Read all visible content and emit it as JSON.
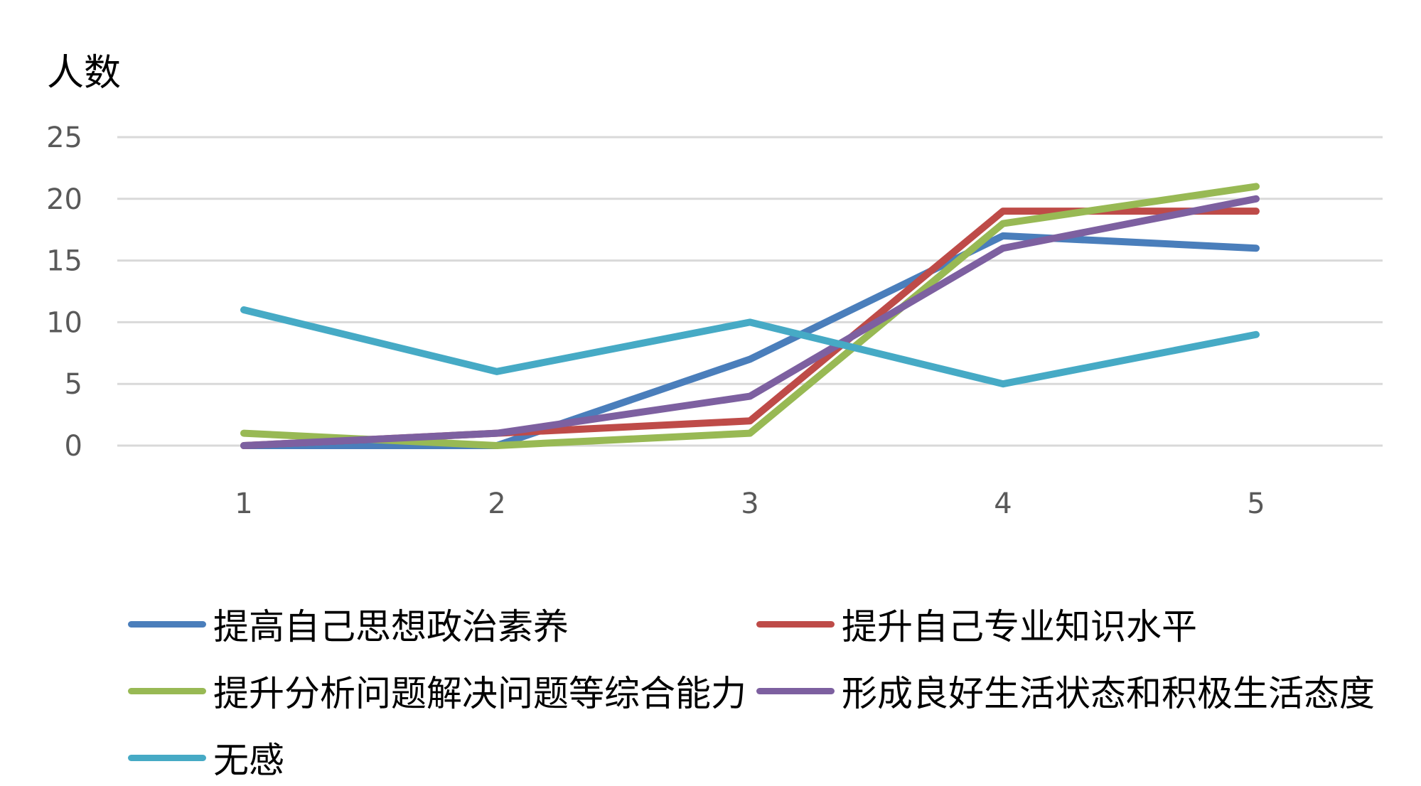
{
  "chart_data": {
    "type": "line",
    "title": "",
    "xlabel": "",
    "ylabel": "人数",
    "x": [
      "1",
      "2",
      "3",
      "4",
      "5"
    ],
    "ylim": [
      0,
      25
    ],
    "yticks": [
      "0",
      "5",
      "10",
      "15",
      "20",
      "25"
    ],
    "grid": true,
    "legend_position": "bottom",
    "series": [
      {
        "name": "提高自己思想政治素养",
        "color": "#4A7EBB",
        "values": [
          0,
          0,
          7,
          17,
          16
        ]
      },
      {
        "name": "提升自己专业知识水平",
        "color": "#BE4B48",
        "values": [
          0,
          1,
          2,
          19,
          19
        ]
      },
      {
        "name": "提升分析问题解决问题等综合能力",
        "color": "#98B954",
        "values": [
          1,
          0,
          1,
          18,
          21
        ]
      },
      {
        "name": "形成良好生活状态和积极生活态度",
        "color": "#7D60A0",
        "values": [
          0,
          1,
          4,
          16,
          20
        ]
      },
      {
        "name": "无感",
        "color": "#46AAC5",
        "values": [
          11,
          6,
          10,
          5,
          9
        ]
      }
    ]
  }
}
